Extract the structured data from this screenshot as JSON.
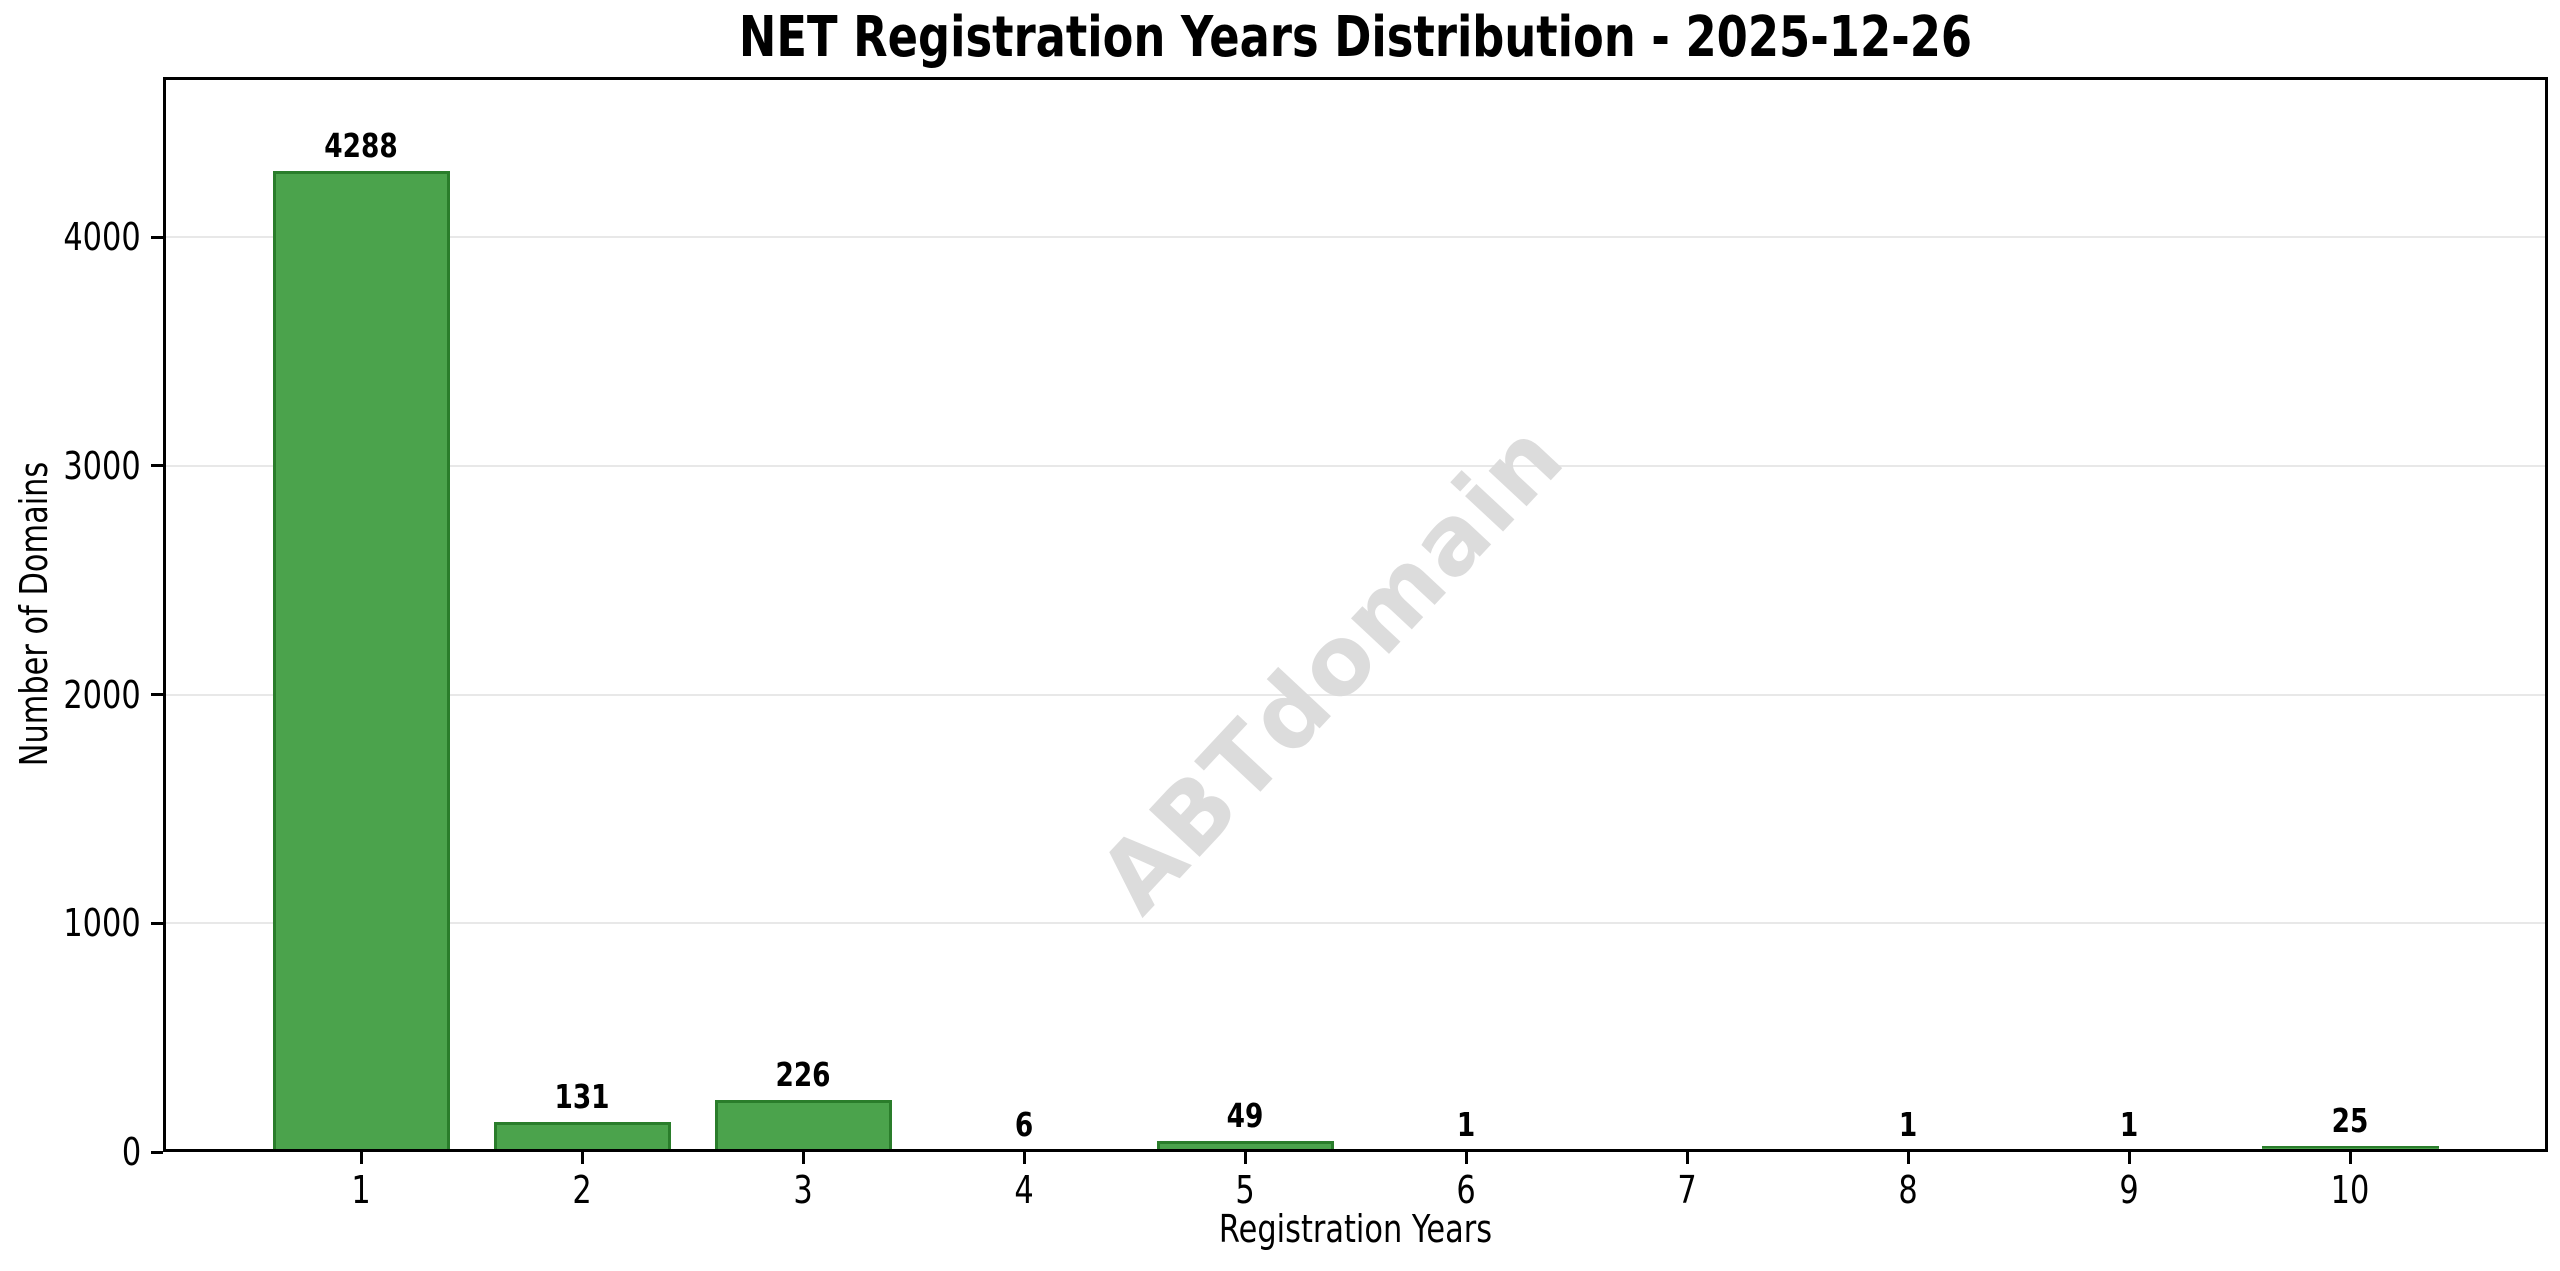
{
  "chart_data": {
    "type": "bar",
    "title": "NET Registration Years Distribution - 2025-12-26",
    "xlabel": "Registration Years",
    "ylabel": "Number of Domains",
    "categories": [
      "1",
      "2",
      "3",
      "4",
      "5",
      "6",
      "7",
      "8",
      "9",
      "10"
    ],
    "values": [
      4288,
      131,
      226,
      6,
      49,
      1,
      0,
      1,
      1,
      25
    ],
    "bar_labels": [
      "4288",
      "131",
      "226",
      "6",
      "49",
      "1",
      "",
      "1",
      "1",
      "25"
    ],
    "yticks": [
      0,
      1000,
      2000,
      3000,
      4000
    ],
    "ylim": [
      0,
      4700
    ],
    "grid": "horizontal-only",
    "legend": "none",
    "watermark": {
      "text": "ABTdomain",
      "angle_deg": -47
    },
    "colors": {
      "bar_fill": "#4BA34C",
      "bar_edge": "#2A7D2B",
      "grid": "#E8E8E8",
      "axis": "#000000",
      "text": "#000000",
      "watermark": "#DCDCDC",
      "background": "#FFFFFF"
    }
  }
}
